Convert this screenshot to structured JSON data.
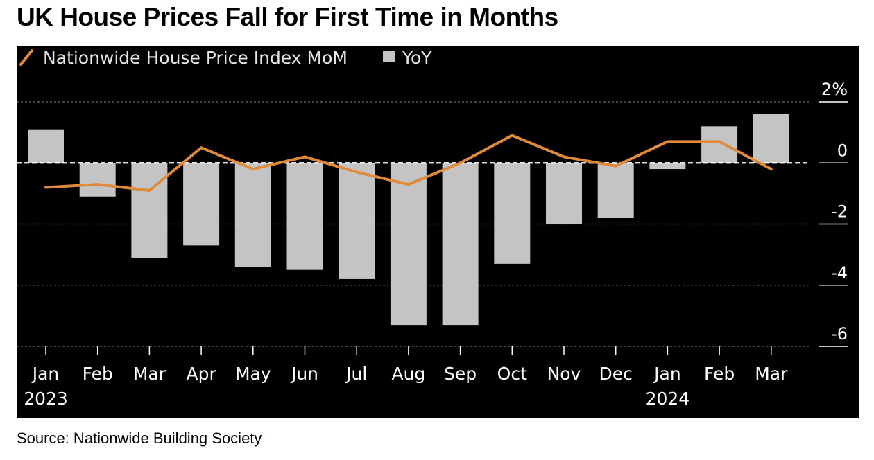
{
  "title": "UK House Prices Fall for First Time in Months",
  "source": "Source: Nationwide Building Society",
  "chart_data": {
    "type": "bar",
    "categories": [
      "Jan",
      "Feb",
      "Mar",
      "Apr",
      "May",
      "Jun",
      "Jul",
      "Aug",
      "Sep",
      "Oct",
      "Nov",
      "Dec",
      "Jan",
      "Feb",
      "Mar"
    ],
    "year_labels": [
      "2023",
      "2024"
    ],
    "series": [
      {
        "name": "YoY",
        "type": "bar",
        "values": [
          1.1,
          -1.1,
          -3.1,
          -2.7,
          -3.4,
          -3.5,
          -3.8,
          -5.3,
          -5.3,
          -3.3,
          -2.0,
          -1.8,
          -0.2,
          1.2,
          1.6
        ],
        "color": "#c4c4c4"
      },
      {
        "name": "Nationwide House Price Index MoM",
        "type": "line",
        "values": [
          -0.8,
          -0.7,
          -0.9,
          0.5,
          -0.2,
          0.2,
          -0.3,
          -0.7,
          0.0,
          0.9,
          0.2,
          -0.1,
          0.7,
          0.7,
          -0.2
        ],
        "color": "#e08a3c"
      }
    ],
    "yticks": [
      "2%",
      "0",
      "-2",
      "-4",
      "-6"
    ],
    "ylim": [
      -6.0,
      2.0
    ],
    "grid": true,
    "legend_position": "top-left"
  }
}
